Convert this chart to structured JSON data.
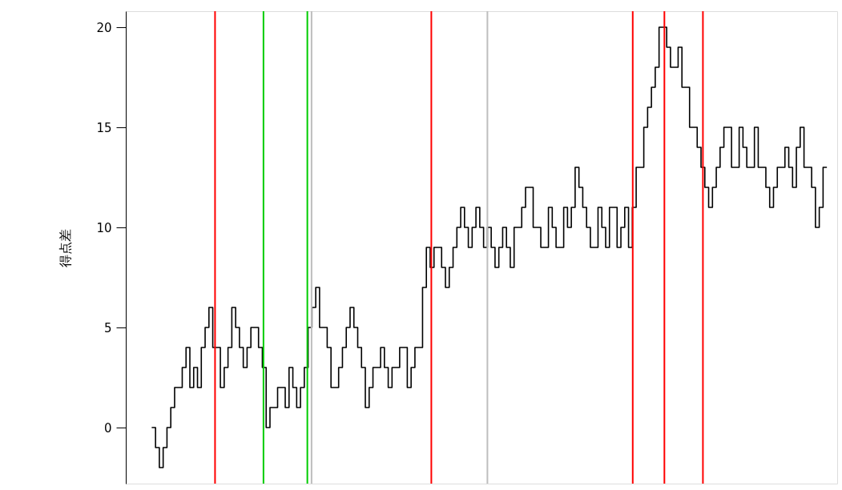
{
  "chart_data": {
    "type": "step",
    "ylabel": "得点差",
    "ylim": [
      -2.8,
      20.8
    ],
    "yticks": [
      0,
      5,
      10,
      15,
      20
    ],
    "tick_labels": "y",
    "grid": false,
    "marker": "none",
    "line_style": "solid",
    "categories": [
      null,
      null,
      null,
      null,
      null,
      null,
      null,
      null,
      null,
      null,
      null,
      null,
      null,
      null,
      null,
      null,
      null,
      null,
      null,
      null,
      null,
      null,
      null,
      null,
      null,
      null,
      null,
      null,
      null,
      null,
      null,
      null,
      null,
      null,
      null,
      null,
      null,
      null,
      null,
      null,
      null,
      null,
      null,
      null,
      null,
      null,
      null,
      null,
      null,
      null,
      null,
      null,
      null,
      null,
      null,
      null,
      null,
      null,
      null,
      null,
      null,
      null,
      null,
      null,
      null,
      null,
      null,
      null,
      null,
      null,
      null,
      null,
      null,
      null,
      null,
      null,
      null,
      null,
      null,
      null,
      null,
      null,
      null,
      null,
      null,
      null,
      null,
      null,
      null,
      null,
      null,
      null,
      null,
      null,
      null,
      null,
      null,
      null,
      null,
      null,
      null,
      null,
      null,
      null,
      null,
      null,
      null,
      null,
      null,
      null,
      null,
      null,
      null,
      null,
      null,
      null,
      null,
      null,
      null,
      null,
      null,
      null,
      null,
      null,
      null,
      null,
      null,
      null,
      null,
      null,
      null,
      null,
      null,
      null,
      null,
      null,
      null,
      null,
      null,
      null,
      null,
      null,
      null,
      null,
      null,
      null,
      null,
      null,
      null,
      null,
      null,
      null,
      null,
      null,
      null,
      null,
      null,
      null,
      null,
      null,
      null,
      null,
      null,
      null,
      null,
      null,
      null,
      null,
      null,
      null,
      null,
      null,
      null,
      null,
      null,
      null,
      null,
      null
    ],
    "series": [
      {
        "color": "#000000",
        "values": [
          0,
          -1,
          -2,
          -1,
          0,
          1,
          2,
          2,
          3,
          4,
          2,
          3,
          2,
          4,
          5,
          6,
          4,
          4,
          2,
          3,
          4,
          6,
          5,
          4,
          3,
          4,
          5,
          5,
          4,
          3,
          0,
          1,
          1,
          2,
          2,
          1,
          3,
          2,
          1,
          2,
          3,
          5,
          6,
          7,
          5,
          5,
          4,
          2,
          2,
          3,
          4,
          5,
          6,
          5,
          4,
          3,
          1,
          2,
          3,
          3,
          4,
          3,
          2,
          3,
          3,
          4,
          4,
          2,
          3,
          4,
          4,
          7,
          9,
          8,
          9,
          9,
          8,
          7,
          8,
          9,
          10,
          11,
          10,
          9,
          10,
          11,
          10,
          9,
          10,
          9,
          8,
          9,
          10,
          9,
          8,
          10,
          10,
          11,
          12,
          12,
          10,
          10,
          9,
          9,
          11,
          10,
          9,
          9,
          11,
          10,
          11,
          13,
          12,
          11,
          10,
          9,
          9,
          11,
          10,
          9,
          11,
          11,
          9,
          10,
          11,
          9,
          11,
          13,
          13,
          15,
          16,
          17,
          18,
          20,
          20,
          19,
          18,
          18,
          19,
          17,
          17,
          15,
          15,
          14,
          13,
          12,
          11,
          12,
          13,
          14,
          15,
          15,
          13,
          13,
          15,
          14,
          13,
          13,
          15,
          13,
          13,
          12,
          11,
          12,
          13,
          13,
          14,
          13,
          12,
          14,
          15,
          13,
          13,
          12,
          10,
          11,
          13,
          13
        ]
      }
    ]
  }
}
